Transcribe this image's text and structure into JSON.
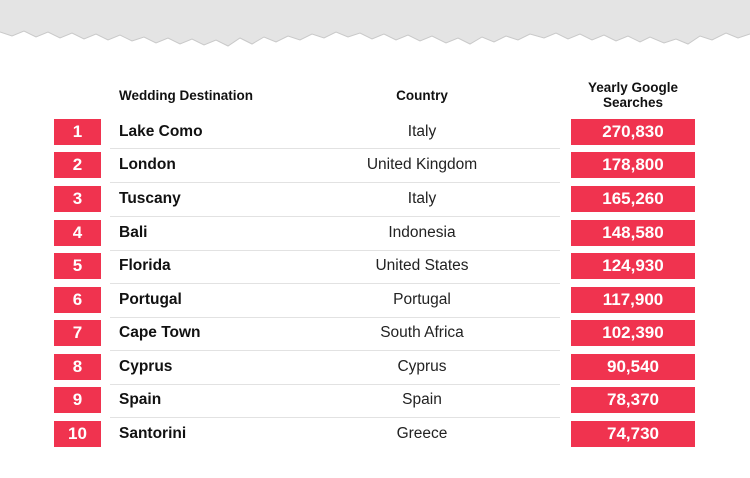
{
  "header": {
    "destination": "Wedding Destination",
    "country": "Country",
    "searches_line1": "Yearly Google",
    "searches_line2": "Searches"
  },
  "colors": {
    "accent": "#f0334f",
    "paper_edge": "#e4e4e4"
  },
  "rows": [
    {
      "rank": "1",
      "destination": "Lake Como",
      "country": "Italy",
      "searches": "270,830"
    },
    {
      "rank": "2",
      "destination": "London",
      "country": "United Kingdom",
      "searches": "178,800"
    },
    {
      "rank": "3",
      "destination": "Tuscany",
      "country": "Italy",
      "searches": "165,260"
    },
    {
      "rank": "4",
      "destination": "Bali",
      "country": "Indonesia",
      "searches": "148,580"
    },
    {
      "rank": "5",
      "destination": "Florida",
      "country": "United States",
      "searches": "124,930"
    },
    {
      "rank": "6",
      "destination": "Portugal",
      "country": "Portugal",
      "searches": "117,900"
    },
    {
      "rank": "7",
      "destination": "Cape Town",
      "country": "South Africa",
      "searches": "102,390"
    },
    {
      "rank": "8",
      "destination": "Cyprus",
      "country": "Cyprus",
      "searches": "90,540"
    },
    {
      "rank": "9",
      "destination": "Spain",
      "country": "Spain",
      "searches": "78,370"
    },
    {
      "rank": "10",
      "destination": "Santorini",
      "country": "Greece",
      "searches": "74,730"
    }
  ]
}
